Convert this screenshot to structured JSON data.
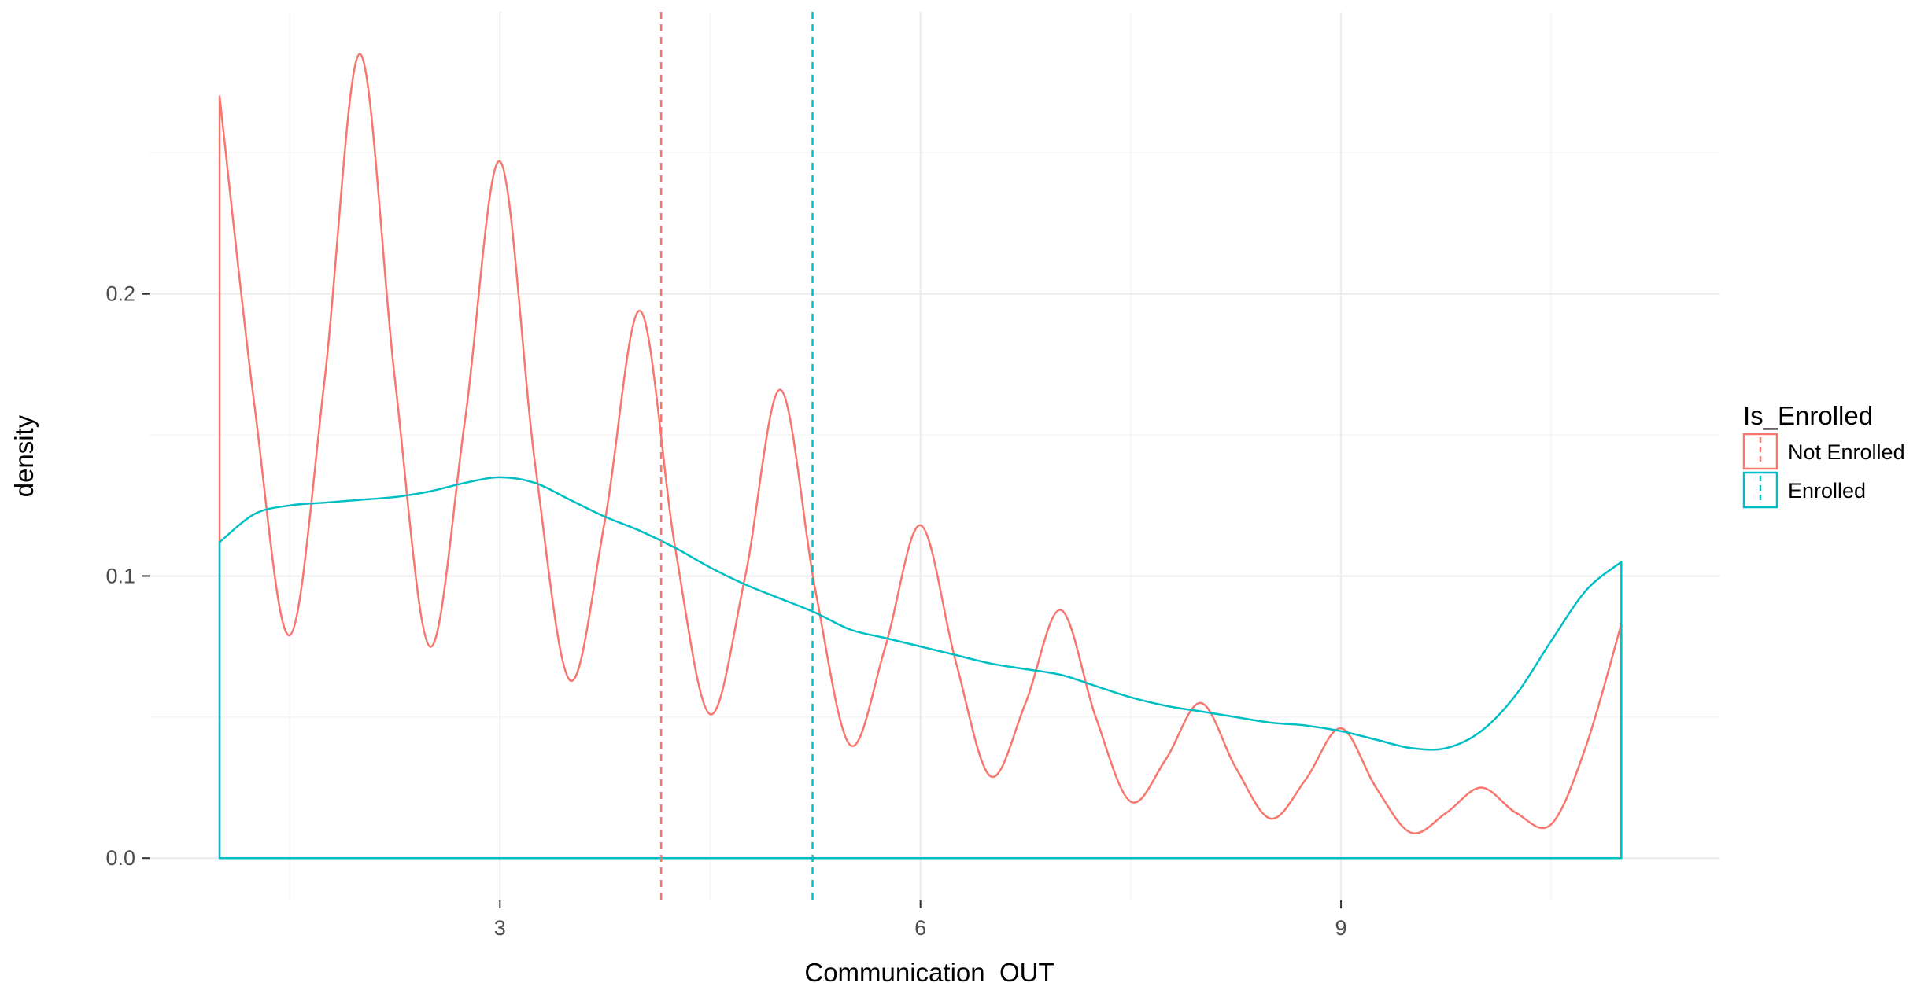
{
  "chart_data": {
    "type": "area",
    "title": "",
    "xlabel": "Communication_OUT",
    "ylabel": "density",
    "xlim": [
      0.5,
      11.7
    ],
    "ylim": [
      -0.015,
      0.3
    ],
    "x_ticks": [
      3,
      6,
      9
    ],
    "y_ticks": [
      0.0,
      0.1,
      0.2
    ],
    "x_tick_labels": [
      "3",
      "6",
      "9"
    ],
    "y_tick_labels": [
      "0.0",
      "0.1",
      "0.2"
    ],
    "grid": true,
    "legend_position": "right",
    "legend_title": "Is_Enrolled",
    "series": [
      {
        "name": "Not Enrolled",
        "color": "#F8766D",
        "mean": 4.15,
        "x": [
          1.0,
          1.25,
          1.5,
          1.75,
          2.0,
          2.25,
          2.5,
          2.75,
          3.0,
          3.25,
          3.5,
          3.75,
          4.0,
          4.25,
          4.5,
          4.75,
          5.0,
          5.25,
          5.5,
          5.75,
          6.0,
          6.25,
          6.5,
          6.75,
          7.0,
          7.25,
          7.5,
          7.75,
          8.0,
          8.25,
          8.5,
          8.75,
          9.0,
          9.25,
          9.5,
          9.75,
          10.0,
          10.25,
          10.5,
          10.75,
          11.0
        ],
        "y": [
          0.27,
          0.16,
          0.079,
          0.17,
          0.285,
          0.17,
          0.075,
          0.155,
          0.247,
          0.14,
          0.063,
          0.12,
          0.194,
          0.11,
          0.051,
          0.1,
          0.166,
          0.095,
          0.04,
          0.075,
          0.118,
          0.07,
          0.029,
          0.055,
          0.088,
          0.05,
          0.02,
          0.035,
          0.055,
          0.032,
          0.014,
          0.028,
          0.046,
          0.025,
          0.009,
          0.016,
          0.025,
          0.016,
          0.012,
          0.04,
          0.083
        ]
      },
      {
        "name": "Enrolled",
        "color": "#00BFC4",
        "mean": 5.23,
        "x": [
          1.0,
          1.25,
          1.5,
          1.75,
          2.0,
          2.25,
          2.5,
          2.75,
          3.0,
          3.25,
          3.5,
          3.75,
          4.0,
          4.25,
          4.5,
          4.75,
          5.0,
          5.25,
          5.5,
          5.75,
          6.0,
          6.25,
          6.5,
          6.75,
          7.0,
          7.25,
          7.5,
          7.75,
          8.0,
          8.25,
          8.5,
          8.75,
          9.0,
          9.25,
          9.5,
          9.75,
          10.0,
          10.25,
          10.5,
          10.75,
          11.0
        ],
        "y": [
          0.112,
          0.122,
          0.125,
          0.126,
          0.127,
          0.128,
          0.13,
          0.133,
          0.135,
          0.133,
          0.127,
          0.121,
          0.116,
          0.11,
          0.103,
          0.097,
          0.092,
          0.087,
          0.081,
          0.078,
          0.075,
          0.072,
          0.069,
          0.067,
          0.065,
          0.061,
          0.057,
          0.054,
          0.052,
          0.05,
          0.048,
          0.047,
          0.045,
          0.042,
          0.039,
          0.039,
          0.045,
          0.058,
          0.077,
          0.095,
          0.105
        ]
      }
    ]
  }
}
